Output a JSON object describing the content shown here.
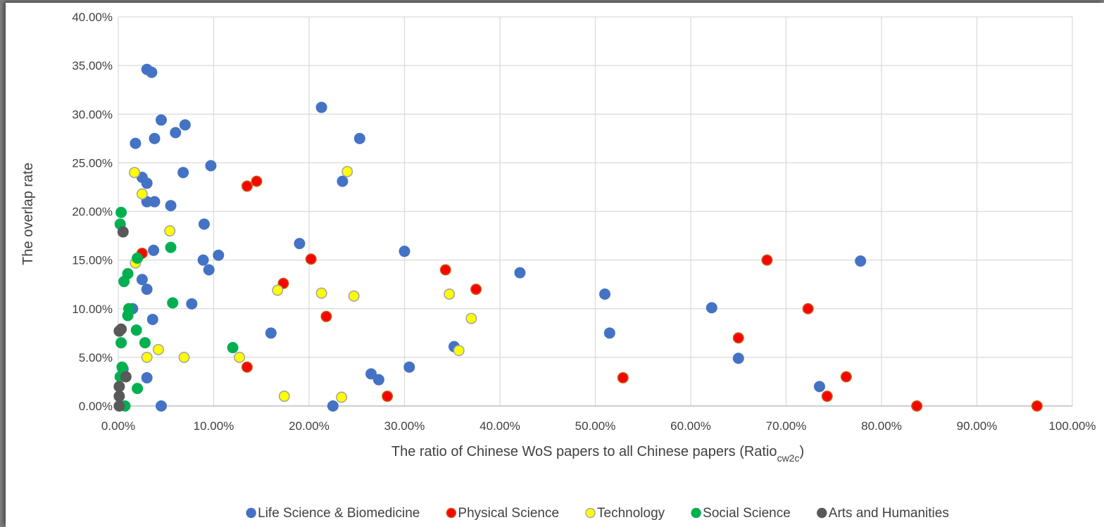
{
  "chart_data": {
    "type": "scatter",
    "xlabel": "The ratio of Chinese WoS papers to all Chinese papers (Ratio",
    "xlabel_sub": "cw2c",
    "xlabel_end": ")",
    "ylabel": "The overlap rate",
    "xlim": [
      0,
      100
    ],
    "ylim": [
      0,
      40
    ],
    "x_ticks": [
      "0.00%",
      "10.00%",
      "20.00%",
      "30.00%",
      "40.00%",
      "50.00%",
      "60.00%",
      "70.00%",
      "80.00%",
      "90.00%",
      "100.00%"
    ],
    "y_ticks": [
      "0.00%",
      "5.00%",
      "10.00%",
      "15.00%",
      "20.00%",
      "25.00%",
      "30.00%",
      "35.00%",
      "40.00%"
    ],
    "grid": true,
    "legend_position": "bottom",
    "series": [
      {
        "name": "Life Science & Biomedicine",
        "color": "#4472C4",
        "edge": "#4472C4",
        "points": [
          [
            3.0,
            34.6
          ],
          [
            3.5,
            34.3
          ],
          [
            21.3,
            30.7
          ],
          [
            4.5,
            29.4
          ],
          [
            7.0,
            28.9
          ],
          [
            6.0,
            28.1
          ],
          [
            3.8,
            27.5
          ],
          [
            25.3,
            27.5
          ],
          [
            1.8,
            27.0
          ],
          [
            9.7,
            24.7
          ],
          [
            6.8,
            24.0
          ],
          [
            2.5,
            23.5
          ],
          [
            23.5,
            23.1
          ],
          [
            3.0,
            22.9
          ],
          [
            3.0,
            21.0
          ],
          [
            3.8,
            21.0
          ],
          [
            5.5,
            20.6
          ],
          [
            9.0,
            18.7
          ],
          [
            19.0,
            16.7
          ],
          [
            30.0,
            15.9
          ],
          [
            3.7,
            16.0
          ],
          [
            10.5,
            15.5
          ],
          [
            8.9,
            15.0
          ],
          [
            77.8,
            14.9
          ],
          [
            9.5,
            14.0
          ],
          [
            42.1,
            13.7
          ],
          [
            2.5,
            13.0
          ],
          [
            3.0,
            12.0
          ],
          [
            51.0,
            11.5
          ],
          [
            7.7,
            10.5
          ],
          [
            1.5,
            10.0
          ],
          [
            62.2,
            10.1
          ],
          [
            3.6,
            8.9
          ],
          [
            16.0,
            7.5
          ],
          [
            51.5,
            7.5
          ],
          [
            35.2,
            6.1
          ],
          [
            65.0,
            4.9
          ],
          [
            0.5,
            3.8
          ],
          [
            30.5,
            4.0
          ],
          [
            3.0,
            2.9
          ],
          [
            26.5,
            3.3
          ],
          [
            27.3,
            2.7
          ],
          [
            73.5,
            2.0
          ],
          [
            4.5,
            0.0
          ],
          [
            22.5,
            0.0
          ]
        ]
      },
      {
        "name": "Physical Science",
        "color": "#FF0000",
        "edge": "#C55A11",
        "points": [
          [
            13.5,
            22.6
          ],
          [
            14.5,
            23.1
          ],
          [
            2.5,
            15.7
          ],
          [
            20.2,
            15.1
          ],
          [
            68.0,
            15.0
          ],
          [
            34.3,
            14.0
          ],
          [
            17.3,
            12.6
          ],
          [
            37.5,
            12.0
          ],
          [
            72.3,
            10.0
          ],
          [
            21.8,
            9.2
          ],
          [
            65.0,
            7.0
          ],
          [
            13.5,
            4.0
          ],
          [
            52.9,
            2.9
          ],
          [
            76.3,
            3.0
          ],
          [
            28.2,
            1.0
          ],
          [
            74.3,
            1.0
          ],
          [
            83.7,
            0.0
          ],
          [
            96.3,
            0.0
          ]
        ]
      },
      {
        "name": "Technology",
        "color": "#FFFF00",
        "edge": "#A5A5A5",
        "points": [
          [
            1.7,
            24.0
          ],
          [
            24.0,
            24.1
          ],
          [
            2.5,
            21.8
          ],
          [
            5.4,
            18.0
          ],
          [
            1.8,
            14.7
          ],
          [
            16.7,
            11.9
          ],
          [
            21.3,
            11.6
          ],
          [
            24.7,
            11.3
          ],
          [
            34.7,
            11.5
          ],
          [
            37.0,
            9.0
          ],
          [
            4.2,
            5.8
          ],
          [
            3.0,
            5.0
          ],
          [
            6.9,
            5.0
          ],
          [
            12.7,
            5.0
          ],
          [
            35.7,
            5.7
          ],
          [
            17.4,
            1.0
          ],
          [
            23.4,
            0.9
          ]
        ]
      },
      {
        "name": "Social Science",
        "color": "#00B050",
        "edge": "#00B050",
        "points": [
          [
            0.3,
            19.9
          ],
          [
            0.2,
            18.7
          ],
          [
            5.5,
            16.3
          ],
          [
            2.0,
            15.2
          ],
          [
            1.0,
            13.6
          ],
          [
            0.6,
            12.8
          ],
          [
            5.7,
            10.6
          ],
          [
            1.1,
            10.0
          ],
          [
            1.0,
            9.3
          ],
          [
            1.9,
            7.8
          ],
          [
            0.3,
            6.5
          ],
          [
            2.8,
            6.5
          ],
          [
            12.0,
            6.0
          ],
          [
            0.4,
            4.0
          ],
          [
            0.2,
            3.0
          ],
          [
            2.0,
            1.8
          ],
          [
            0.7,
            0.0
          ]
        ]
      },
      {
        "name": "Arts and Humanities",
        "color": "#595959",
        "edge": "#595959",
        "points": [
          [
            0.5,
            17.9
          ],
          [
            0.3,
            7.9
          ],
          [
            0.1,
            7.7
          ],
          [
            0.8,
            3.0
          ],
          [
            0.1,
            2.0
          ],
          [
            0.1,
            1.0
          ],
          [
            0.1,
            0.0
          ]
        ]
      }
    ]
  }
}
